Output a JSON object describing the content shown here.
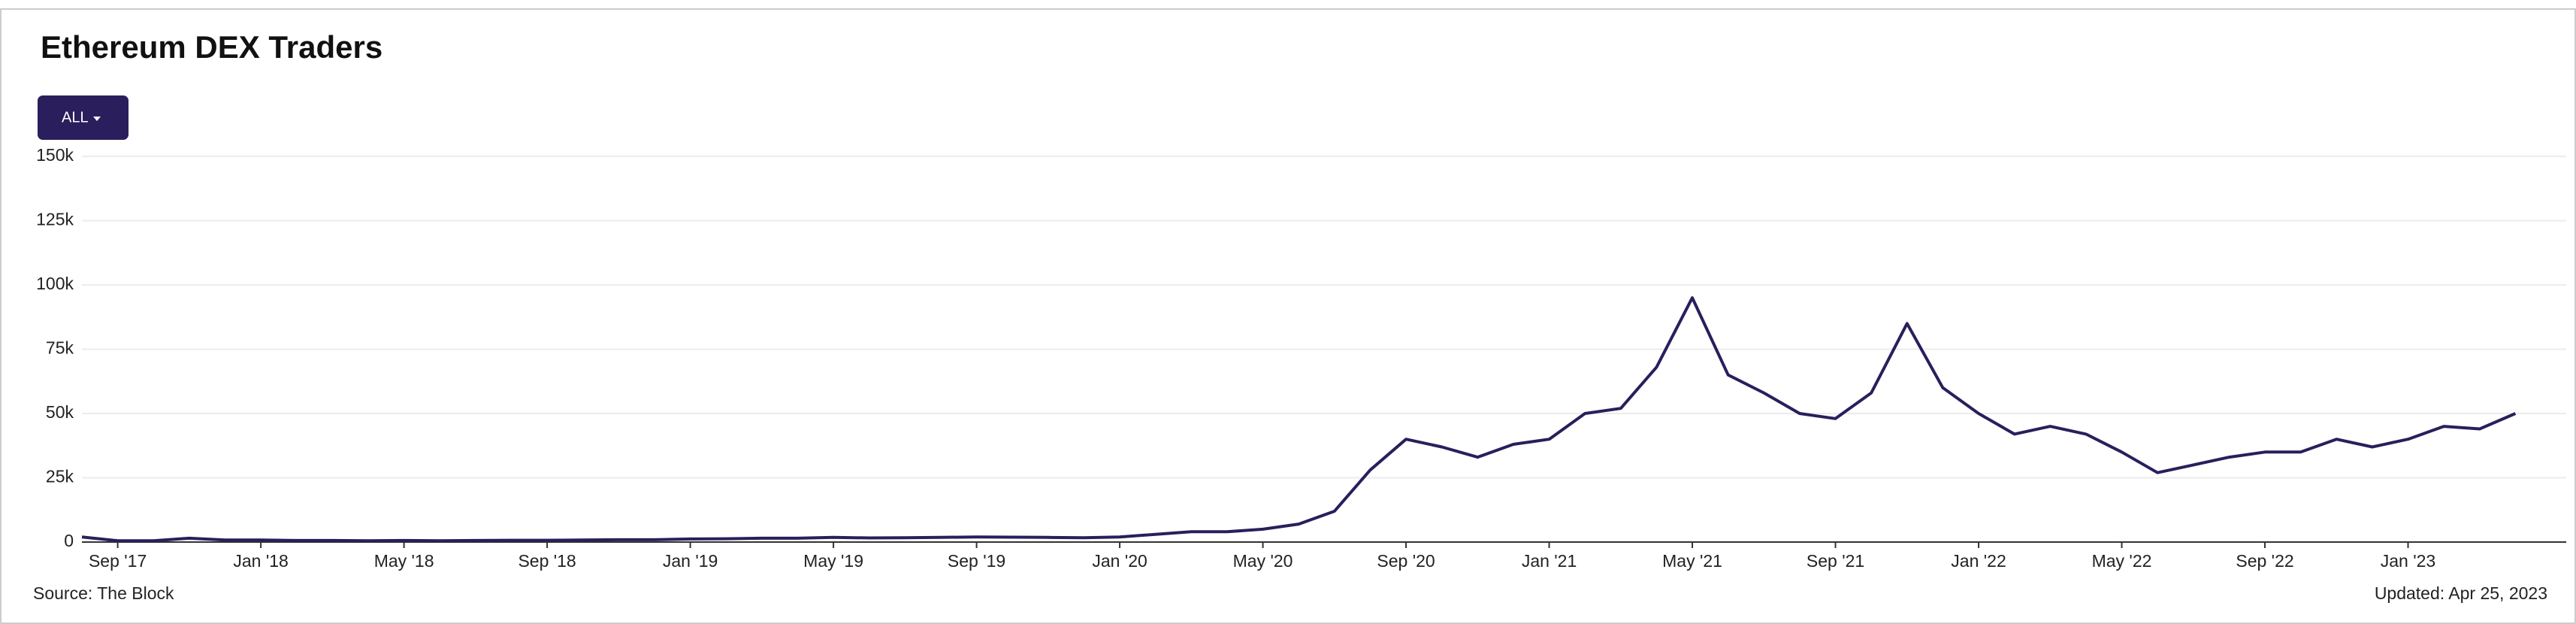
{
  "chart_data": {
    "type": "line",
    "title": "Ethereum DEX Traders",
    "range_button": "ALL",
    "source": "Source: The Block",
    "updated": "Updated: Apr 25, 2023",
    "x": [
      "2017-08",
      "2017-09",
      "2017-10",
      "2017-11",
      "2017-12",
      "2018-01",
      "2018-02",
      "2018-03",
      "2018-04",
      "2018-05",
      "2018-06",
      "2018-07",
      "2018-08",
      "2018-09",
      "2018-10",
      "2018-11",
      "2018-12",
      "2019-01",
      "2019-02",
      "2019-03",
      "2019-04",
      "2019-05",
      "2019-06",
      "2019-07",
      "2019-08",
      "2019-09",
      "2019-10",
      "2019-11",
      "2019-12",
      "2020-01",
      "2020-02",
      "2020-03",
      "2020-04",
      "2020-05",
      "2020-06",
      "2020-07",
      "2020-08",
      "2020-09",
      "2020-10",
      "2020-11",
      "2020-12",
      "2021-01",
      "2021-02",
      "2021-03",
      "2021-04",
      "2021-05",
      "2021-06",
      "2021-07",
      "2021-08",
      "2021-09",
      "2021-10",
      "2021-11",
      "2021-12",
      "2022-01",
      "2022-02",
      "2022-03",
      "2022-04",
      "2022-05",
      "2022-06",
      "2022-07",
      "2022-08",
      "2022-09",
      "2022-10",
      "2022-11",
      "2022-12",
      "2023-01",
      "2023-02",
      "2023-03",
      "2023-04"
    ],
    "series": [
      {
        "name": "Traders",
        "color": "#2a1f5c",
        "values": [
          2000,
          500,
          500,
          1500,
          800,
          800,
          600,
          600,
          500,
          600,
          500,
          600,
          700,
          700,
          800,
          900,
          900,
          1200,
          1300,
          1500,
          1500,
          1800,
          1600,
          1700,
          1800,
          2000,
          1900,
          1800,
          1700,
          2000,
          3000,
          4000,
          4000,
          5000,
          7000,
          12000,
          28000,
          40000,
          37000,
          33000,
          38000,
          40000,
          50000,
          52000,
          68000,
          95000,
          65000,
          58000,
          50000,
          48000,
          58000,
          85000,
          60000,
          50000,
          42000,
          45000,
          42000,
          35000,
          27000,
          30000,
          33000,
          35000,
          35000,
          40000,
          37000,
          40000,
          45000,
          44000,
          50000
        ]
      }
    ],
    "xlim": [
      "2017-08",
      "2023-05"
    ],
    "xticks": [
      {
        "value": "2017-09",
        "label": "Sep '17"
      },
      {
        "value": "2018-01",
        "label": "Jan '18"
      },
      {
        "value": "2018-05",
        "label": "May '18"
      },
      {
        "value": "2018-09",
        "label": "Sep '18"
      },
      {
        "value": "2019-01",
        "label": "Jan '19"
      },
      {
        "value": "2019-05",
        "label": "May '19"
      },
      {
        "value": "2019-09",
        "label": "Sep '19"
      },
      {
        "value": "2020-01",
        "label": "Jan '20"
      },
      {
        "value": "2020-05",
        "label": "May '20"
      },
      {
        "value": "2020-09",
        "label": "Sep '20"
      },
      {
        "value": "2021-01",
        "label": "Jan '21"
      },
      {
        "value": "2021-05",
        "label": "May '21"
      },
      {
        "value": "2021-09",
        "label": "Sep '21"
      },
      {
        "value": "2022-01",
        "label": "Jan '22"
      },
      {
        "value": "2022-05",
        "label": "May '22"
      },
      {
        "value": "2022-09",
        "label": "Sep '22"
      },
      {
        "value": "2023-01",
        "label": "Jan '23"
      }
    ],
    "ylim": [
      0,
      150000
    ],
    "yticks": [
      0,
      {
        "value": 25000,
        "label": "25k"
      },
      {
        "value": 50000,
        "label": "50k"
      },
      {
        "value": 75000,
        "label": "75k"
      },
      {
        "value": 100000,
        "label": "100k"
      },
      {
        "value": 125000,
        "label": "125k"
      },
      {
        "value": 150000,
        "label": "150k"
      }
    ],
    "grid": true
  }
}
